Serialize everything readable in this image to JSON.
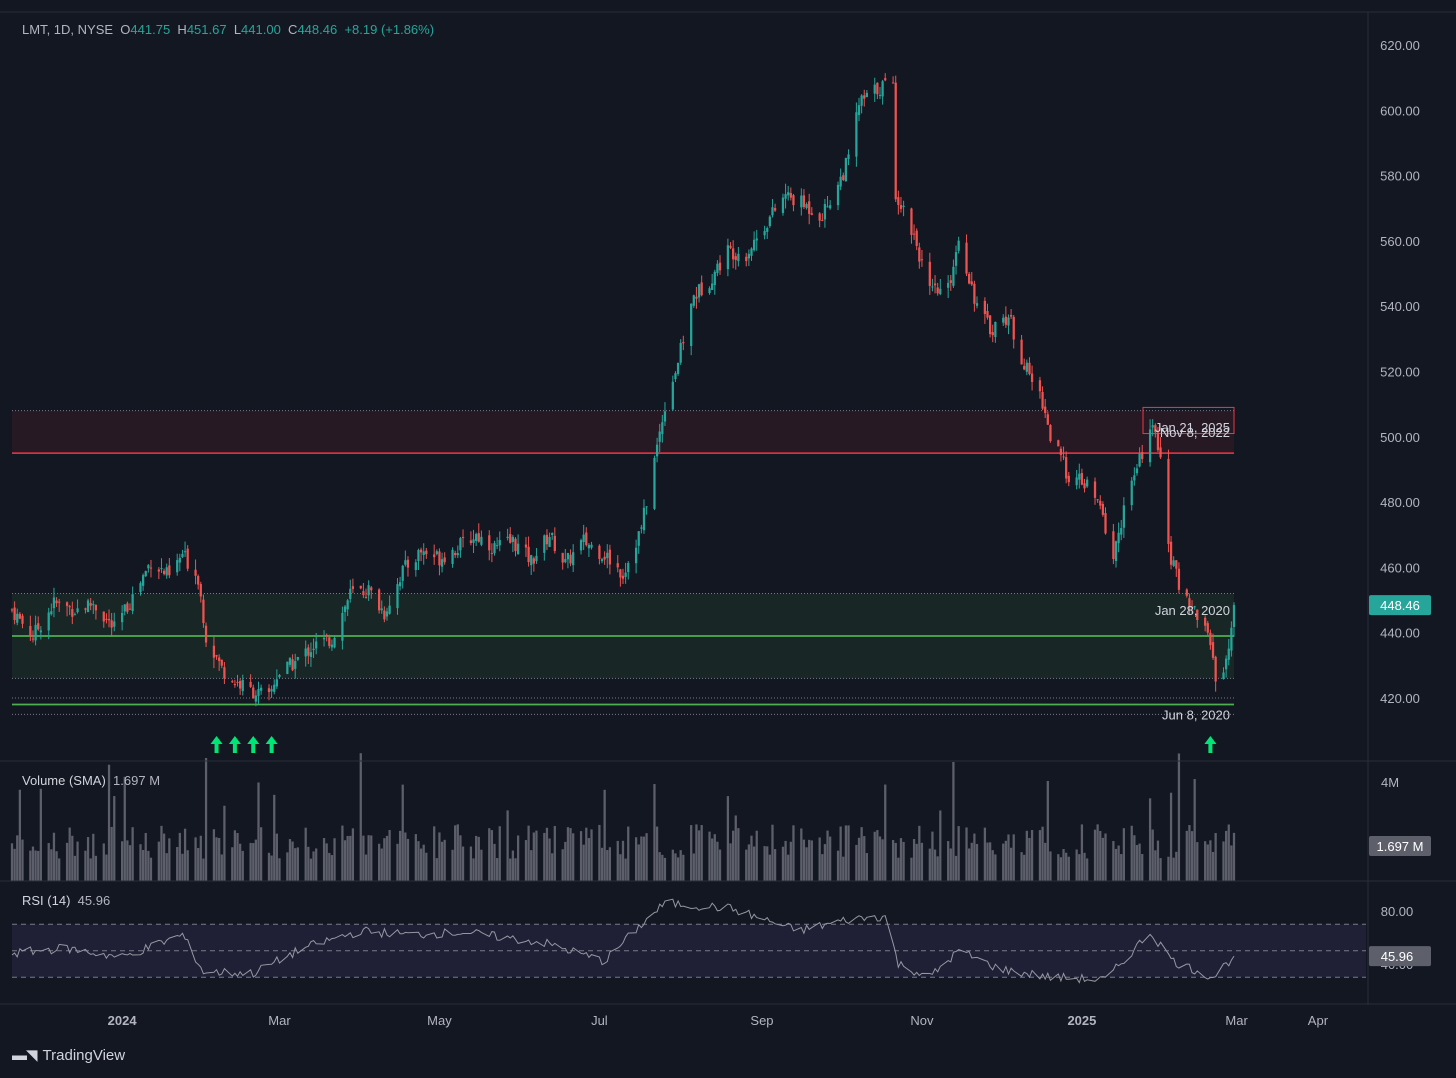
{
  "header": {
    "symbol": "LMT",
    "interval": "1D",
    "exchange": "NYSE",
    "open_label": "O",
    "open": "441.75",
    "high_label": "H",
    "high": "451.67",
    "low_label": "L",
    "low": "441.00",
    "close_label": "C",
    "close": "448.46",
    "change": "+8.19 (+1.86%)"
  },
  "volume_legend": {
    "label": "Volume (SMA)",
    "value": "1.697 M"
  },
  "rsi_legend": {
    "label": "RSI (14)",
    "value": "45.96"
  },
  "brand": {
    "name": "TradingView"
  },
  "colors": {
    "background": "#131722",
    "up": "#26a69a",
    "down": "#ef5350",
    "grid_text": "#b2b5be",
    "resistance": "#f23645",
    "support": "#4caf50",
    "signal_arrow": "#00e676",
    "rsi_line": "#9598a1",
    "volume": "#5d606b"
  },
  "chart_data": [
    {
      "type": "candlestick",
      "title": "LMT, 1D, NYSE",
      "x_ticks": [
        "2024",
        "Mar",
        "May",
        "Jul",
        "Sep",
        "Nov",
        "2025",
        "Mar",
        "Apr"
      ],
      "y_ticks": [
        "620.00",
        "600.00",
        "580.00",
        "560.00",
        "540.00",
        "520.00",
        "500.00",
        "480.00",
        "460.00",
        "440.00",
        "420.00"
      ],
      "ylim": [
        406,
        627
      ],
      "anchors": [
        {
          "d": "2023-11-20",
          "p": 447
        },
        {
          "d": "2023-11-28",
          "p": 439
        },
        {
          "d": "2023-12-06",
          "p": 449
        },
        {
          "d": "2023-12-14",
          "p": 447
        },
        {
          "d": "2023-12-21",
          "p": 449
        },
        {
          "d": "2023-12-29",
          "p": 441
        },
        {
          "d": "2024-01-05",
          "p": 451
        },
        {
          "d": "2024-01-12",
          "p": 462
        },
        {
          "d": "2024-01-19",
          "p": 457
        },
        {
          "d": "2024-01-24",
          "p": 464
        },
        {
          "d": "2024-01-30",
          "p": 457
        },
        {
          "d": "2024-02-02",
          "p": 439
        },
        {
          "d": "2024-02-08",
          "p": 429
        },
        {
          "d": "2024-02-13",
          "p": 425
        },
        {
          "d": "2024-02-20",
          "p": 422
        },
        {
          "d": "2024-02-26",
          "p": 420
        },
        {
          "d": "2024-02-29",
          "p": 427
        },
        {
          "d": "2024-03-07",
          "p": 431
        },
        {
          "d": "2024-03-14",
          "p": 436
        },
        {
          "d": "2024-03-21",
          "p": 438
        },
        {
          "d": "2024-03-28",
          "p": 452
        },
        {
          "d": "2024-04-04",
          "p": 453
        },
        {
          "d": "2024-04-10",
          "p": 446
        },
        {
          "d": "2024-04-17",
          "p": 459
        },
        {
          "d": "2024-04-24",
          "p": 465
        },
        {
          "d": "2024-05-01",
          "p": 463
        },
        {
          "d": "2024-05-08",
          "p": 466
        },
        {
          "d": "2024-05-15",
          "p": 470
        },
        {
          "d": "2024-05-22",
          "p": 466
        },
        {
          "d": "2024-05-29",
          "p": 468
        },
        {
          "d": "2024-06-05",
          "p": 462
        },
        {
          "d": "2024-06-12",
          "p": 470
        },
        {
          "d": "2024-06-18",
          "p": 461
        },
        {
          "d": "2024-06-25",
          "p": 468
        },
        {
          "d": "2024-07-03",
          "p": 464
        },
        {
          "d": "2024-07-10",
          "p": 458
        },
        {
          "d": "2024-07-17",
          "p": 472
        },
        {
          "d": "2024-07-23",
          "p": 497
        },
        {
          "d": "2024-07-26",
          "p": 510
        },
        {
          "d": "2024-07-31",
          "p": 523
        },
        {
          "d": "2024-08-06",
          "p": 543
        },
        {
          "d": "2024-08-12",
          "p": 548
        },
        {
          "d": "2024-08-19",
          "p": 557
        },
        {
          "d": "2024-08-26",
          "p": 556
        },
        {
          "d": "2024-09-03",
          "p": 566
        },
        {
          "d": "2024-09-10",
          "p": 574
        },
        {
          "d": "2024-09-17",
          "p": 571
        },
        {
          "d": "2024-09-24",
          "p": 568
        },
        {
          "d": "2024-10-01",
          "p": 579
        },
        {
          "d": "2024-10-04",
          "p": 585
        },
        {
          "d": "2024-10-08",
          "p": 602
        },
        {
          "d": "2024-10-14",
          "p": 606
        },
        {
          "d": "2024-10-18",
          "p": 608
        },
        {
          "d": "2024-10-21",
          "p": 607
        },
        {
          "d": "2024-10-22",
          "p": 575
        },
        {
          "d": "2024-10-29",
          "p": 562
        },
        {
          "d": "2024-11-04",
          "p": 544
        },
        {
          "d": "2024-11-11",
          "p": 545
        },
        {
          "d": "2024-11-15",
          "p": 561
        },
        {
          "d": "2024-11-22",
          "p": 540
        },
        {
          "d": "2024-11-27",
          "p": 533
        },
        {
          "d": "2024-12-04",
          "p": 537
        },
        {
          "d": "2024-12-10",
          "p": 522
        },
        {
          "d": "2024-12-17",
          "p": 511
        },
        {
          "d": "2024-12-20",
          "p": 500
        },
        {
          "d": "2024-12-27",
          "p": 488
        },
        {
          "d": "2025-01-03",
          "p": 485
        },
        {
          "d": "2025-01-08",
          "p": 478
        },
        {
          "d": "2025-01-13",
          "p": 463
        },
        {
          "d": "2025-01-17",
          "p": 478
        },
        {
          "d": "2025-01-22",
          "p": 490
        },
        {
          "d": "2025-01-27",
          "p": 503
        },
        {
          "d": "2025-01-31",
          "p": 496
        },
        {
          "d": "2025-02-03",
          "p": 465
        },
        {
          "d": "2025-02-07",
          "p": 455
        },
        {
          "d": "2025-02-13",
          "p": 447
        },
        {
          "d": "2025-02-19",
          "p": 438
        },
        {
          "d": "2025-02-21",
          "p": 425
        },
        {
          "d": "2025-02-25",
          "p": 432
        },
        {
          "d": "2025-02-27",
          "p": 440
        },
        {
          "d": "2025-02-28",
          "p": 448.46
        }
      ],
      "last_price_label": "448.46",
      "resistance_zone": {
        "top": 508,
        "bottom": 495
      },
      "support_zone": {
        "top": 452,
        "bottom": 426
      },
      "support_lines": [
        439,
        418
      ],
      "dotted_levels": [
        508,
        452,
        426,
        420,
        415
      ],
      "annotations": [
        {
          "text": "Jan 21, 2025",
          "price": 503
        },
        {
          "text": "Nov 8, 2022",
          "price": 501.5
        },
        {
          "text": "Jan 28, 2020",
          "price": 447
        },
        {
          "text": "Jun 8, 2020",
          "price": 415
        }
      ],
      "signal_arrows": [
        "2024-02-06",
        "2024-02-13",
        "2024-02-20",
        "2024-02-27",
        "2025-02-19"
      ]
    },
    {
      "type": "bar",
      "title": "Volume (SMA)",
      "y_ticks": [
        "4M"
      ],
      "last_value_label": "1.697 M",
      "ylim": [
        0,
        4.8
      ]
    },
    {
      "type": "line",
      "title": "RSI (14)",
      "y_ticks": [
        "80.00",
        "40.00"
      ],
      "band": [
        30,
        70
      ],
      "ylim": [
        20,
        90
      ],
      "last_value_label": "45.96",
      "anchors": [
        {
          "d": "2023-11-20",
          "v": 48
        },
        {
          "d": "2023-12-10",
          "v": 52
        },
        {
          "d": "2024-01-01",
          "v": 45
        },
        {
          "d": "2024-01-24",
          "v": 62
        },
        {
          "d": "2024-02-01",
          "v": 34
        },
        {
          "d": "2024-02-20",
          "v": 33
        },
        {
          "d": "2024-03-10",
          "v": 52
        },
        {
          "d": "2024-04-01",
          "v": 65
        },
        {
          "d": "2024-04-20",
          "v": 62
        },
        {
          "d": "2024-05-10",
          "v": 64
        },
        {
          "d": "2024-06-10",
          "v": 56
        },
        {
          "d": "2024-07-03",
          "v": 42
        },
        {
          "d": "2024-07-15",
          "v": 66
        },
        {
          "d": "2024-07-26",
          "v": 86
        },
        {
          "d": "2024-08-20",
          "v": 82
        },
        {
          "d": "2024-09-15",
          "v": 65
        },
        {
          "d": "2024-10-05",
          "v": 74
        },
        {
          "d": "2024-10-18",
          "v": 76
        },
        {
          "d": "2024-10-23",
          "v": 40
        },
        {
          "d": "2024-11-04",
          "v": 30
        },
        {
          "d": "2024-11-15",
          "v": 50
        },
        {
          "d": "2024-12-01",
          "v": 36
        },
        {
          "d": "2024-12-20",
          "v": 30
        },
        {
          "d": "2025-01-10",
          "v": 28
        },
        {
          "d": "2025-01-27",
          "v": 64
        },
        {
          "d": "2025-02-05",
          "v": 42
        },
        {
          "d": "2025-02-20",
          "v": 30
        },
        {
          "d": "2025-02-28",
          "v": 45.96
        }
      ]
    }
  ]
}
